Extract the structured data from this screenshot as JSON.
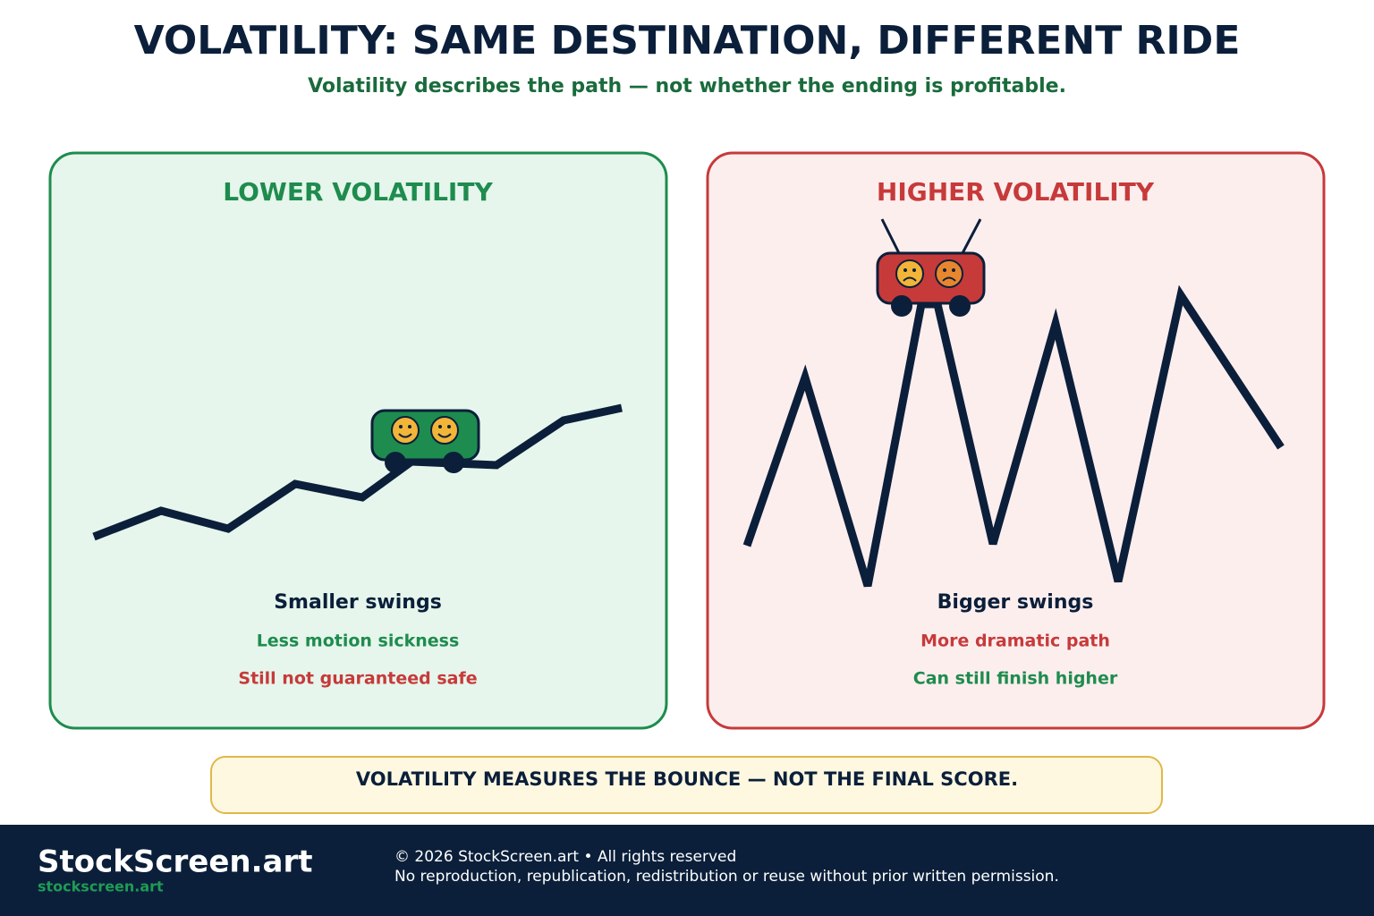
{
  "header": {
    "title": "VOLATILITY: SAME DESTINATION, DIFFERENT RIDE",
    "subtitle": "Volatility describes the path — not whether the ending is profitable."
  },
  "panels": [
    {
      "title": "LOWER VOLATILITY",
      "heading": "Smaller swings",
      "lines": [
        "Less motion sickness",
        "Still not guaranteed safe"
      ]
    },
    {
      "title": "HIGHER VOLATILITY",
      "heading": "Bigger swings",
      "lines": [
        "More dramatic path",
        "Can still finish higher"
      ]
    }
  ],
  "callout": "VOLATILITY MEASURES THE BOUNCE — NOT THE FINAL SCORE.",
  "footer": {
    "brand": "StockScreen.art",
    "url": "stockscreen.art",
    "copyright": "© 2026 StockScreen.art • All rights reserved",
    "notice": "No reproduction, republication, redistribution or reuse without prior written permission."
  }
}
